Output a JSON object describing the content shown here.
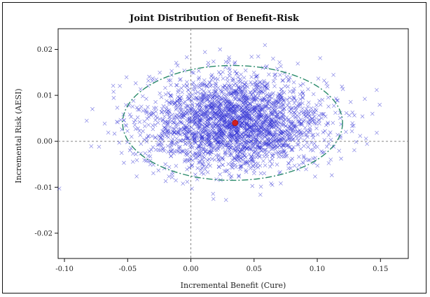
{
  "chart_data": {
    "type": "scatter",
    "title": "Joint Distribution of Benefit-Risk",
    "xlabel": "Incremental Benefit (Cure)",
    "ylabel": "Incremental Risk (AESI)",
    "xlim": [
      -0.105,
      0.172
    ],
    "ylim": [
      -0.0255,
      0.0245
    ],
    "x_ticks": [
      -0.1,
      -0.05,
      0.0,
      0.05,
      0.1,
      0.15
    ],
    "x_tick_labels": [
      "-0.10",
      "-0.05",
      "0.00",
      "0.05",
      "0.10",
      "0.15"
    ],
    "y_ticks": [
      0.02,
      0.01,
      0.0,
      -0.01,
      -0.02
    ],
    "y_tick_labels": [
      "0.02",
      "0.01",
      "0.00",
      "-0.01",
      "-0.02"
    ],
    "reference_lines": {
      "x": 0.0,
      "y": 0.0
    },
    "mean_point": {
      "x": 0.035,
      "y": 0.004
    },
    "confidence_ellipse": {
      "cx": 0.033,
      "cy": 0.004,
      "rx": 0.087,
      "ry": 0.0125
    },
    "marker_symbol": "x",
    "colors": {
      "points": "#3a3ad6",
      "mean": "#d21f1f",
      "ellipse": "#2a8a6a",
      "reference": "#888888",
      "frame": "#111111"
    },
    "grid": false
  }
}
